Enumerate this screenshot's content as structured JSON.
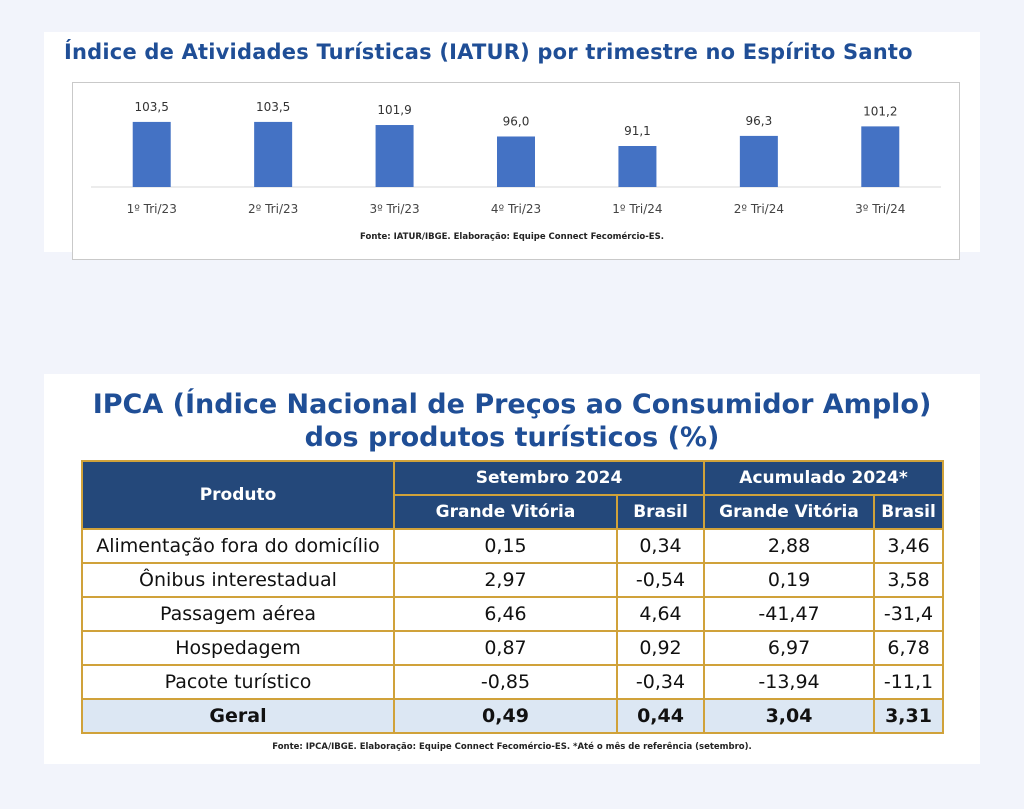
{
  "chart": {
    "title": "Índice de Atividades Turísticas (IATUR) por trimestre no Espírito Santo",
    "source": "Fonte: IATUR/IBGE. Elaboração: Equipe Connect Fecomércio-ES.",
    "bar_color": "#4472c4"
  },
  "chart_data": {
    "type": "bar",
    "title": "Índice de Atividades Turísticas (IATUR) por trimestre no Espírito Santo",
    "categories": [
      "1º Tri/23",
      "2º Tri/23",
      "3º Tri/23",
      "4º Tri/23",
      "1º Tri/24",
      "2º Tri/24",
      "3º Tri/24"
    ],
    "values": [
      103.5,
      103.5,
      101.9,
      96.0,
      91.1,
      96.3,
      101.2
    ],
    "value_labels": [
      "103,5",
      "103,5",
      "101,9",
      "96,0",
      "91,1",
      "96,3",
      "101,2"
    ],
    "ylim": [
      70,
      105
    ],
    "grid": false,
    "xlabel": "",
    "ylabel": ""
  },
  "table": {
    "title_line1": "IPCA (Índice Nacional de Preços ao Consumidor Amplo)",
    "title_line2": "dos produtos turísticos (%)",
    "header_produto": "Produto",
    "header_group1": "Setembro 2024",
    "header_group2": "Acumulado 2024*",
    "sub_gv1": "Grande Vitória",
    "sub_br1": "Brasil",
    "sub_gv2": "Grande Vitória",
    "sub_br2": "Brasil",
    "rows": [
      {
        "produto": "Alimentação fora do domicílio",
        "set_gv": "0,15",
        "set_br": "0,34",
        "acc_gv": "2,88",
        "acc_br": "3,46"
      },
      {
        "produto": "Ônibus interestadual",
        "set_gv": "2,97",
        "set_br": "-0,54",
        "acc_gv": "0,19",
        "acc_br": "3,58"
      },
      {
        "produto": "Passagem aérea",
        "set_gv": "6,46",
        "set_br": "4,64",
        "acc_gv": "-41,47",
        "acc_br": "-31,4"
      },
      {
        "produto": "Hospedagem",
        "set_gv": "0,87",
        "set_br": "0,92",
        "acc_gv": "6,97",
        "acc_br": "6,78"
      },
      {
        "produto": "Pacote turístico",
        "set_gv": "-0,85",
        "set_br": "-0,34",
        "acc_gv": "-13,94",
        "acc_br": "-11,1"
      },
      {
        "produto": "Geral",
        "set_gv": "0,49",
        "set_br": "0,44",
        "acc_gv": "3,04",
        "acc_br": "3,31"
      }
    ],
    "source": "Fonte: IPCA/IBGE. Elaboração: Equipe Connect Fecomércio-ES. *Até o mês de referência (setembro).",
    "header_color": "#24487a",
    "border_color": "#d0a23a",
    "total_row_color": "#dce7f3"
  }
}
